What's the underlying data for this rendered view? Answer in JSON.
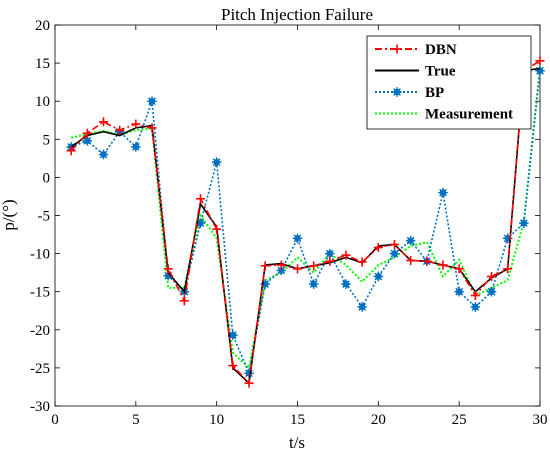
{
  "chart_data": {
    "type": "line",
    "title": "Pitch Injection Failure",
    "xlabel": "t/s",
    "ylabel": "p/(°)",
    "xlim": [
      0,
      30
    ],
    "ylim": [
      -30,
      20
    ],
    "x_ticks": [
      0,
      5,
      10,
      15,
      20,
      25,
      30
    ],
    "y_ticks": [
      -30,
      -25,
      -20,
      -15,
      -10,
      -5,
      0,
      5,
      10,
      15,
      20
    ],
    "grid": false,
    "legend_position": "top-right",
    "x": [
      1,
      2,
      3,
      4,
      5,
      6,
      7,
      8,
      9,
      10,
      11,
      12,
      13,
      14,
      15,
      16,
      17,
      18,
      19,
      20,
      21,
      22,
      23,
      24,
      25,
      26,
      27,
      28,
      29,
      30
    ],
    "series": [
      {
        "name": "DBN",
        "color": "#ff0000",
        "line_style": "dash-dot",
        "marker": "plus",
        "values": [
          3.5,
          5.8,
          7.3,
          6.2,
          7.0,
          6.5,
          -12.0,
          -16.2,
          -2.8,
          -6.8,
          -24.7,
          -27.0,
          -11.6,
          -11.5,
          -12.0,
          -11.6,
          -11.0,
          -10.2,
          -11.1,
          -9.2,
          -8.8,
          -10.9,
          -11.0,
          -11.5,
          -12.0,
          -15.5,
          -13.0,
          -12.0,
          14.0,
          15.3
        ]
      },
      {
        "name": "True",
        "color": "#000000",
        "line_style": "solid",
        "marker": "none",
        "values": [
          4.0,
          5.5,
          6.0,
          5.5,
          6.5,
          6.8,
          -12.5,
          -15.0,
          -3.5,
          -6.5,
          -25.0,
          -27.0,
          -11.5,
          -11.3,
          -12.0,
          -11.6,
          -11.2,
          -10.5,
          -11.2,
          -9.0,
          -8.8,
          -10.9,
          -11.0,
          -11.5,
          -12.0,
          -15.0,
          -13.2,
          -12.0,
          14.0,
          14.3
        ]
      },
      {
        "name": "BP",
        "color": "#0070c0",
        "line_style": "dotted",
        "marker": "asterisk",
        "values": [
          4.0,
          4.8,
          3.0,
          6.0,
          4.0,
          10.0,
          -12.9,
          -15.0,
          -6.0,
          2.0,
          -20.7,
          -25.7,
          -14.0,
          -12.2,
          -8.0,
          -14.0,
          -10.0,
          -14.0,
          -17.0,
          -13.0,
          -10.0,
          -8.3,
          -11.0,
          -2.0,
          -15.0,
          -17.0,
          -15.0,
          -8.0,
          -6.0,
          14.0
        ]
      },
      {
        "name": "Measurement",
        "color": "#00ff00",
        "line_style": "dotted",
        "marker": "none",
        "values": [
          5.2,
          5.7,
          6.1,
          5.6,
          6.2,
          6.4,
          -14.5,
          -14.5,
          -5.0,
          -8.0,
          -23.0,
          -25.0,
          -13.5,
          -12.5,
          -10.5,
          -12.5,
          -10.0,
          -11.5,
          -13.7,
          -11.5,
          -10.5,
          -9.0,
          -8.5,
          -13.0,
          -10.8,
          -15.5,
          -14.5,
          -13.5,
          -5.8,
          14.5
        ]
      }
    ]
  }
}
